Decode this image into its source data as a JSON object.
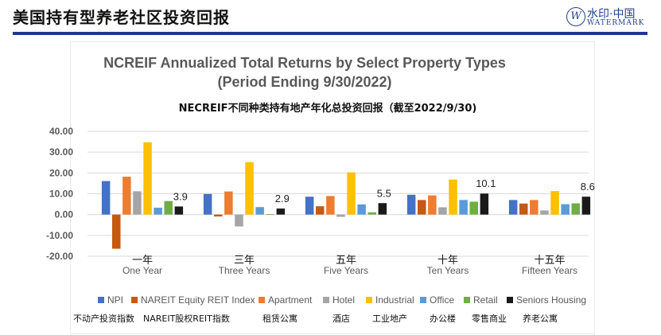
{
  "page": {
    "title": "美国持有型养老社区投资回报",
    "brand_cn": "水印·中国",
    "brand_en": "WATERMARK"
  },
  "chart_data": {
    "type": "bar",
    "title": "NCREIF Annualized Total Returns by Select Property Types",
    "subtitle": "(Period Ending 9/30/2022)",
    "annotation_cn": "NECREIF不同种类持有地产年化总投资回报（截至2022/9/30)",
    "categories": [
      "One Year",
      "Three Years",
      "Five Years",
      "Ten Years",
      "Fifteen Years"
    ],
    "categories_cn": [
      "一年",
      "三年",
      "五年",
      "十年",
      "十五年"
    ],
    "ylim": [
      -20,
      40
    ],
    "yticks": [
      "40.00",
      "30.00",
      "20.00",
      "10.00",
      "0.00",
      "-10.00",
      "-20.00"
    ],
    "grid": true,
    "legend_position": "bottom",
    "series": [
      {
        "name": "NPI",
        "name_cn": "不动产投资指数",
        "color": "#4472C4",
        "values": [
          16.1,
          9.9,
          8.6,
          9.5,
          7.0
        ]
      },
      {
        "name": "NAREIT Equity REIT Index",
        "name_cn": "NAREIT股权REIT指数",
        "color": "#C55A11",
        "values": [
          -16.4,
          -0.9,
          4.0,
          7.0,
          5.3
        ]
      },
      {
        "name": "Apartment",
        "name_cn": "租赁公寓",
        "color": "#ED7D31",
        "values": [
          18.2,
          11.1,
          8.9,
          9.2,
          7.0
        ]
      },
      {
        "name": "Hotel",
        "name_cn": "酒店",
        "color": "#A5A5A5",
        "values": [
          11.2,
          -5.7,
          -1.1,
          3.5,
          2.0
        ]
      },
      {
        "name": "Industrial",
        "name_cn": "工业地产",
        "color": "#FFC000",
        "values": [
          34.7,
          25.2,
          20.3,
          16.8,
          11.3
        ]
      },
      {
        "name": "Office",
        "name_cn": "办公楼",
        "color": "#5B9BD5",
        "values": [
          3.3,
          3.6,
          4.9,
          7.0,
          5.0
        ]
      },
      {
        "name": "Retail",
        "name_cn": "零售商业",
        "color": "#70AD47",
        "values": [
          6.5,
          0.2,
          1.1,
          6.2,
          5.4
        ]
      },
      {
        "name": "Seniors Housing",
        "name_cn": "养老公寓",
        "color": "#1A1A1A",
        "values": [
          3.9,
          2.9,
          5.5,
          10.1,
          8.6
        ]
      }
    ],
    "data_labels": {
      "series": "Seniors Housing",
      "values": [
        "3.9",
        "2.9",
        "5.5",
        "10.1",
        "8.6"
      ]
    }
  }
}
